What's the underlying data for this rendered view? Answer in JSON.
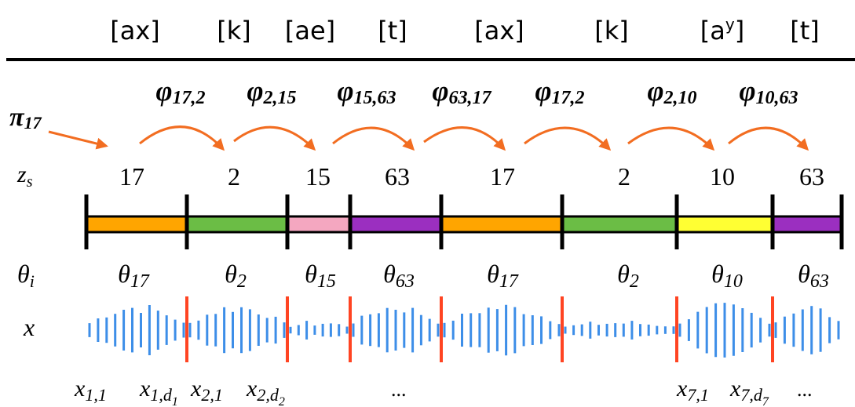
{
  "phonemes": [
    "[ax]",
    "[k]",
    "[ae]",
    "[t]",
    "[ax]",
    "[k]",
    "[a",
    "[t]"
  ],
  "phoneme_superscript": "y",
  "phoneme_superscript_close": "]",
  "initial_prob": {
    "symbol": "π",
    "subscript": "17"
  },
  "transitions": [
    {
      "symbol": "φ",
      "subscript": "17,2"
    },
    {
      "symbol": "φ",
      "subscript": "2,15"
    },
    {
      "symbol": "φ",
      "subscript": "15,63"
    },
    {
      "symbol": "φ",
      "subscript": "63,17"
    },
    {
      "symbol": "φ",
      "subscript": "17,2"
    },
    {
      "symbol": "φ",
      "subscript": "2,10"
    },
    {
      "symbol": "φ",
      "subscript": "10,63"
    }
  ],
  "state_row": {
    "symbol": "z",
    "subscript": "s"
  },
  "states": [
    "17",
    "2",
    "15",
    "63",
    "17",
    "2",
    "10",
    "63"
  ],
  "param_row": {
    "symbol": "θ",
    "subscript": "i"
  },
  "params": [
    {
      "symbol": "θ",
      "subscript": "17"
    },
    {
      "symbol": "θ",
      "subscript": "2"
    },
    {
      "symbol": "θ",
      "subscript": "15"
    },
    {
      "symbol": "θ",
      "subscript": "63"
    },
    {
      "symbol": "θ",
      "subscript": "17"
    },
    {
      "symbol": "θ",
      "subscript": "2"
    },
    {
      "symbol": "θ",
      "subscript": "10"
    },
    {
      "symbol": "θ",
      "subscript": "63"
    }
  ],
  "segment_colors": [
    "#ffa500",
    "#6bbd45",
    "#f4a7c0",
    "#9b2fc0",
    "#ffa500",
    "#6bbd45",
    "#ffff33",
    "#9b2fc0"
  ],
  "observation_row": {
    "symbol": "x"
  },
  "bottom_labels": {
    "x11": {
      "base": "x",
      "sub": "1,1"
    },
    "x1d1": {
      "base": "x",
      "sub": "1,d",
      "subsub": "1"
    },
    "x21": {
      "base": "x",
      "sub": "2,1"
    },
    "x2d2": {
      "base": "x",
      "sub": "2,d",
      "subsub": "2"
    },
    "ellipsis_mid": "...",
    "x71": {
      "base": "x",
      "sub": "7,1"
    },
    "x7d7": {
      "base": "x",
      "sub": "7,d",
      "subsub": "7"
    },
    "ellipsis_end": "..."
  },
  "colors": {
    "arrow": "#f26d21",
    "boundary": "#ff4422",
    "wave": "#3d8ee8",
    "text": "#000000"
  }
}
